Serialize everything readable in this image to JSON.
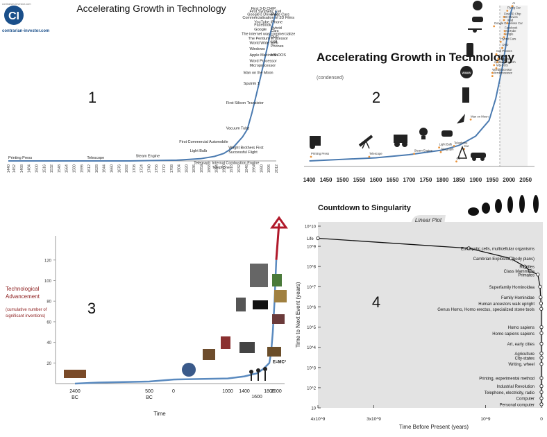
{
  "logo": {
    "text": "CI",
    "caption": "contrarian-investor.com",
    "top_caption": "contrarian-investor.com"
  },
  "panel_numbers": [
    "1",
    "2",
    "3",
    "4"
  ],
  "chart_data": [
    {
      "type": "line",
      "title": "Accelerating Growth in Technology",
      "xlim": [
        1440,
        2012
      ],
      "x_ticks": [
        "1440",
        "1452",
        "1468",
        "1484",
        "1500",
        "1516",
        "1532",
        "1548",
        "1564",
        "1580",
        "1596",
        "1612",
        "1628",
        "1644",
        "1660",
        "1676",
        "1692",
        "1708",
        "1724",
        "1740",
        "1756",
        "1772",
        "1788",
        "1804",
        "1820",
        "1836",
        "1852",
        "1868",
        "1884",
        "1900",
        "1916",
        "1932",
        "1948",
        "1964",
        "1980",
        "1996",
        "2012"
      ],
      "series": [
        {
          "x": [
            1440,
            1700,
            1800,
            1850,
            1880,
            1900,
            1920,
            1940,
            1950,
            1960,
            1970,
            1980,
            1990,
            2000,
            2012
          ],
          "y": [
            0,
            0,
            0.5,
            1.5,
            3,
            5,
            9,
            16,
            21,
            32,
            45,
            58,
            72,
            86,
            100
          ]
        }
      ],
      "annotations": [
        {
          "text": "Printing Press",
          "x": 1440,
          "y": 1.5
        },
        {
          "text": "Telescope",
          "x": 1608,
          "y": 1.5
        },
        {
          "text": "Steam Engine",
          "x": 1712,
          "y": 2.5
        },
        {
          "text": "Light Bulb",
          "x": 1828,
          "y": 6
        },
        {
          "text": "Telegraph",
          "x": 1836,
          "y": -2
        },
        {
          "text": "First Commercial Automobile",
          "x": 1805,
          "y": 12
        },
        {
          "text": "Internal Combustion Engine",
          "x": 1875,
          "y": -2
        },
        {
          "text": "Telephone",
          "x": 1875,
          "y": -5
        },
        {
          "text": "Wright Brothers First",
          "x": 1910,
          "y": 8
        },
        {
          "text": "Successful Flight",
          "x": 1910,
          "y": 5
        },
        {
          "text": "Vacuum Tube",
          "x": 1905,
          "y": 21
        },
        {
          "text": "First Silicon Transistor",
          "x": 1905,
          "y": 38
        },
        {
          "text": "Sputnik 1",
          "x": 1942,
          "y": 51
        },
        {
          "text": "Man on the Moon",
          "x": 1942,
          "y": 58
        },
        {
          "text": "Microprocessor",
          "x": 1955,
          "y": 63
        },
        {
          "text": "Word Processor",
          "x": 1955,
          "y": 66
        },
        {
          "text": "Apple Macintosh",
          "x": 1955,
          "y": 70
        },
        {
          "text": "Windows",
          "x": 1955,
          "y": 74
        },
        {
          "text": "World Wide Web",
          "x": 1955,
          "y": 78
        },
        {
          "text": "The Pentium Processor",
          "x": 1952,
          "y": 81
        },
        {
          "text": "The internet was commercialized",
          "x": 1938,
          "y": 84
        },
        {
          "text": "Google",
          "x": 1965,
          "y": 87
        },
        {
          "text": "Facebook",
          "x": 1965,
          "y": 90
        },
        {
          "text": "YouTube",
          "x": 1965,
          "y": 92
        },
        {
          "text": "Commercialisation of 3D Films",
          "x": 1940,
          "y": 95
        },
        {
          "text": "Google's Driverless Cars",
          "x": 1950,
          "y": 97
        },
        {
          "text": "First Synthetic Cell",
          "x": 1955,
          "y": 99
        },
        {
          "text": "First 3-D CHIP",
          "x": 1958,
          "y": 101
        },
        {
          "text": "iPad",
          "x": 2000,
          "y": 97
        },
        {
          "text": "iPhone",
          "x": 2000,
          "y": 92
        },
        {
          "text": "Hybrid",
          "x": 2000,
          "y": 88
        },
        {
          "text": "Cars",
          "x": 2000,
          "y": 86
        },
        {
          "text": "DVD",
          "x": 2000,
          "y": 82
        },
        {
          "text": "Cell",
          "x": 2000,
          "y": 79
        },
        {
          "text": "Phones",
          "x": 2000,
          "y": 76
        },
        {
          "text": "MS-DOS",
          "x": 2000,
          "y": 70
        }
      ]
    },
    {
      "type": "line",
      "title": "Accelerating Growth in Technology",
      "subtitle": "(condensed)",
      "xlim": [
        1380,
        2060
      ],
      "x_ticks": [
        "1400",
        "1450",
        "1500",
        "1550",
        "1600",
        "1650",
        "1700",
        "1750",
        "1800",
        "1850",
        "1900",
        "1950",
        "2000",
        "2050"
      ],
      "series": [
        {
          "x": [
            1400,
            1600,
            1700,
            1800,
            1850,
            1900,
            1940,
            1960,
            1980,
            1995,
            2005,
            2012
          ],
          "y": [
            0,
            2,
            4,
            7,
            10,
            16,
            26,
            40,
            60,
            80,
            95,
            100
          ]
        }
      ],
      "annotations": [
        {
          "text": "Printing Press",
          "x": 1405,
          "y": 4
        },
        {
          "text": "Telescope",
          "x": 1580,
          "y": 4
        },
        {
          "text": "Steam Engine",
          "x": 1715,
          "y": 6
        },
        {
          "text": "Light Bulb",
          "x": 1790,
          "y": 10
        },
        {
          "text": "Telegraph",
          "x": 1795,
          "y": 7
        },
        {
          "text": "Telephone",
          "x": 1835,
          "y": 11
        },
        {
          "text": "Car",
          "x": 1865,
          "y": 9
        },
        {
          "text": "Oil",
          "x": 1842,
          "y": 1
        },
        {
          "text": "Man on Moon",
          "x": 1885,
          "y": 28
        },
        {
          "text": "Microprocessor",
          "x": 1950,
          "y": 56
        },
        {
          "text": "Wordprocessor",
          "x": 1950,
          "y": 58
        },
        {
          "text": "MS-DOS",
          "x": 1962,
          "y": 61
        },
        {
          "text": "Apple Macintosh",
          "x": 1955,
          "y": 63
        },
        {
          "text": "Windows",
          "x": 1965,
          "y": 65
        },
        {
          "text": "WWW",
          "x": 1968,
          "y": 67
        },
        {
          "text": "Cell Phones",
          "x": 1962,
          "y": 70
        },
        {
          "text": "DVD",
          "x": 1980,
          "y": 74
        },
        {
          "text": "Hybrid Cars",
          "x": 1975,
          "y": 78
        },
        {
          "text": "Google",
          "x": 1985,
          "y": 81
        },
        {
          "text": "YouTube",
          "x": 1987,
          "y": 83
        },
        {
          "text": "Facebook",
          "x": 1987,
          "y": 85
        },
        {
          "text": "Google Driverless Car",
          "x": 1955,
          "y": 88
        },
        {
          "text": "iPad",
          "x": 1995,
          "y": 90
        },
        {
          "text": "3D Movies",
          "x": 1985,
          "y": 92
        },
        {
          "text": "First 3D Chip",
          "x": 1985,
          "y": 94
        },
        {
          "text": "Flying Car",
          "x": 1995,
          "y": 98
        },
        {
          "text": "AI",
          "x": 2010,
          "y": 101
        }
      ]
    },
    {
      "type": "line",
      "ylabel": "Technological Advancement",
      "ylabel_sub": "(cumulative number of significant inventions)",
      "xlabel": "Time",
      "ylim": [
        0,
        130
      ],
      "y_ticks": [
        "20",
        "40",
        "60",
        "80",
        "100",
        "120"
      ],
      "x_ticks": [
        "2400 BC",
        "500 BC",
        "0",
        "1000",
        "1400",
        "1600",
        "1800",
        "2000"
      ],
      "series": [
        {
          "x": [
            -2400,
            -1800,
            -500,
            0,
            1000,
            1400,
            1600,
            1700,
            1800,
            1850,
            1900,
            1950,
            2000
          ],
          "y": [
            0,
            1,
            2,
            4,
            5,
            7,
            10,
            14,
            20,
            30,
            50,
            80,
            120
          ]
        }
      ],
      "annotations": [
        {
          "text": "E=MC²",
          "x": 1900,
          "y": 20
        }
      ]
    },
    {
      "type": "scatter",
      "title": "Countdown to Singularity",
      "plot_label": "Linear Plot",
      "xlabel": "Time Before Present (years)",
      "ylabel": "Time to Next Event (years)",
      "x_ticks": [
        "4x10^9",
        "3x10^9",
        "10^9",
        "0"
      ],
      "y_ticks": [
        "10",
        "10^2",
        "10^3",
        "10^4",
        "10^5",
        "10^6",
        "10^7",
        "10^8",
        "10^9",
        "10^10"
      ],
      "events": [
        {
          "label": "Life",
          "x": 4000000000,
          "y": 2500000000
        },
        {
          "label": "Eukaryotic cells, multicellular organisms",
          "x": 1300000000,
          "y": 800000000
        },
        {
          "label": "Cambrian Explosion (body plans)",
          "x": 550000000,
          "y": 250000000
        },
        {
          "label": "Reptiles",
          "x": 300000000,
          "y": 100000000
        },
        {
          "label": "Class Mammalia",
          "x": 200000000,
          "y": 60000000
        },
        {
          "label": "Primates",
          "x": 65000000,
          "y": 40000000
        },
        {
          "label": "Superfamily Hominoidea",
          "x": 25000000,
          "y": 10000000
        },
        {
          "label": "Family Hominidae",
          "x": 15000000,
          "y": 3000000
        },
        {
          "label": "Human ancestors walk upright",
          "x": 7000000,
          "y": 1500000
        },
        {
          "label": "Genus Homo, Homo erectus, specialized stone tools",
          "x": 2000000,
          "y": 800000
        },
        {
          "label": "Homo sapiens",
          "x": 200000,
          "y": 100000
        },
        {
          "label": "Homo sapiens sapiens",
          "x": 100000,
          "y": 50000
        },
        {
          "label": "Art, early cities",
          "x": 40000,
          "y": 15000
        },
        {
          "label": "Agriculture",
          "x": 10000,
          "y": 5000
        },
        {
          "label": "City-states",
          "x": 5000,
          "y": 3000
        },
        {
          "label": "Writing, wheel",
          "x": 3500,
          "y": 1500
        },
        {
          "label": "Printing, experimental method",
          "x": 550,
          "y": 300
        },
        {
          "label": "Industrial Revolution",
          "x": 250,
          "y": 120
        },
        {
          "label": "Telephone, electricity, radio",
          "x": 120,
          "y": 60
        },
        {
          "label": "Computer",
          "x": 60,
          "y": 30
        },
        {
          "label": "Personal computer",
          "x": 30,
          "y": 15
        }
      ]
    }
  ]
}
